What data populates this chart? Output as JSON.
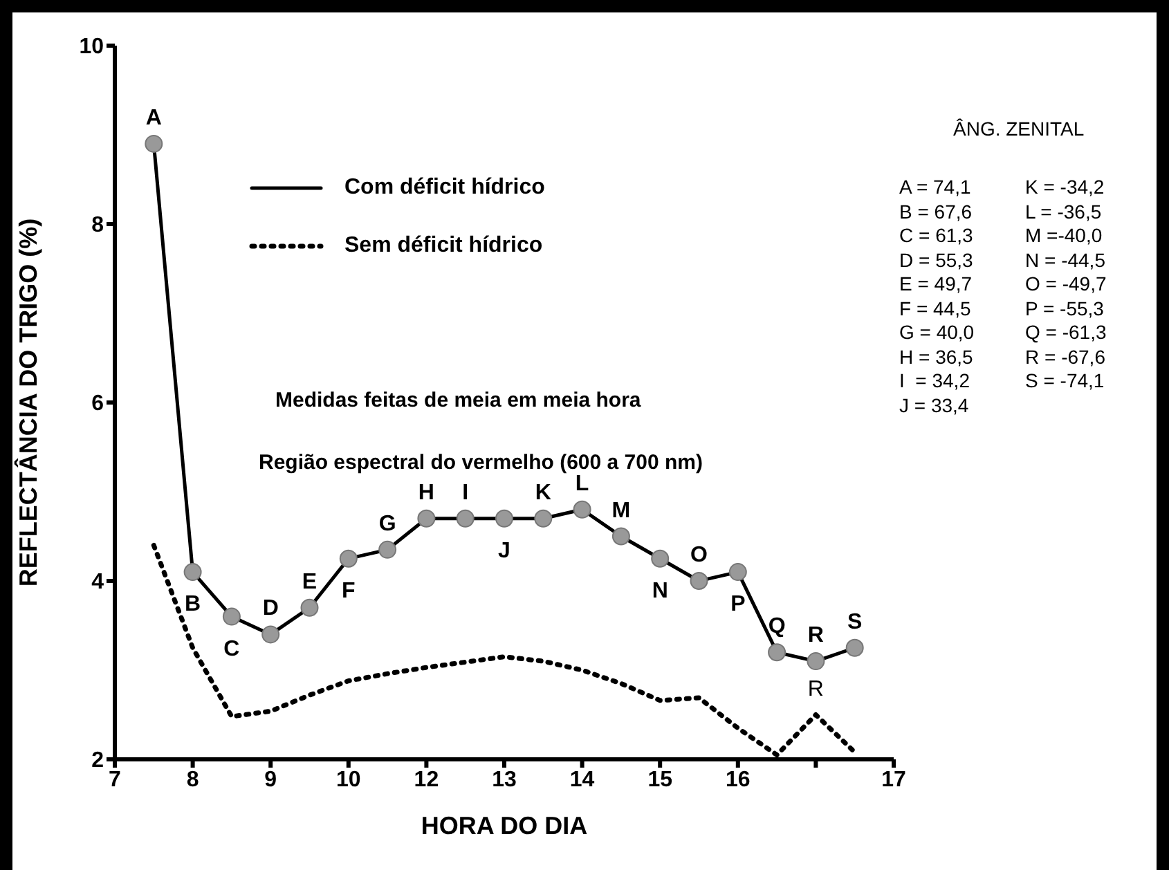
{
  "chart_data": {
    "type": "line",
    "xlabel": "HORA DO DIA",
    "ylabel": "REFLECTÂNCIA DO TRIGO (%)",
    "categories": [
      "7",
      null,
      "8",
      null,
      "9",
      null,
      "10",
      null,
      "12",
      null,
      "13",
      null,
      "14",
      null,
      "15",
      null,
      "16",
      null,
      null,
      null,
      "17"
    ],
    "ylim": [
      2,
      10
    ],
    "yticks": [
      2,
      4,
      6,
      8,
      10
    ],
    "grid": false,
    "legend": "top left",
    "series": [
      {
        "name": "Com déficit hídrico",
        "color": "#000000",
        "marker": "circle",
        "line_style": "solid",
        "values": [
          null,
          8.9,
          4.1,
          3.6,
          3.4,
          3.7,
          4.25,
          4.35,
          4.7,
          4.7,
          4.7,
          4.7,
          4.8,
          4.5,
          4.25,
          4.0,
          4.1,
          3.2,
          3.1,
          3.25,
          null
        ],
        "value_labels": [
          null,
          "A",
          "B",
          "C",
          "D",
          "E",
          "F",
          "G",
          "H",
          "I",
          "J",
          "K",
          "L",
          "M",
          "N",
          "O",
          "P",
          "Q",
          "R",
          "S",
          null
        ]
      },
      {
        "name": "Sem déficit hídrico",
        "color": "#000000",
        "marker": "none",
        "line_style": "dotted",
        "values": [
          null,
          4.4,
          3.25,
          2.48,
          2.54,
          2.72,
          2.88,
          2.96,
          3.03,
          3.09,
          3.15,
          3.1,
          3.0,
          2.85,
          2.66,
          2.69,
          2.35,
          2.05,
          2.5,
          2.08,
          null
        ],
        "value_labels": [
          null,
          null,
          null,
          null,
          null,
          null,
          null,
          null,
          null,
          null,
          null,
          null,
          null,
          null,
          null,
          null,
          null,
          null,
          "R",
          null,
          null
        ]
      }
    ],
    "annotations": [
      "Medidas feitas de meia em meia hora",
      "Região espectral do vermelho (600 a 700 nm)",
      "ÂNG. ZENITAL",
      "A = 74,1",
      "B = 67,6",
      "C = 61,3",
      "D = 55,3",
      "E = 49,7",
      "F = 44,5",
      "G = 40,0",
      "H = 36,5",
      "I  = 34,2",
      "J = 33,4",
      "K = -34,2",
      "L = -36,5",
      "M =-40,0",
      "N = -44,5",
      "O = -49,7",
      "P = -55,3",
      "Q = -61,3",
      "R = -67,6",
      "S = -74,1"
    ]
  }
}
